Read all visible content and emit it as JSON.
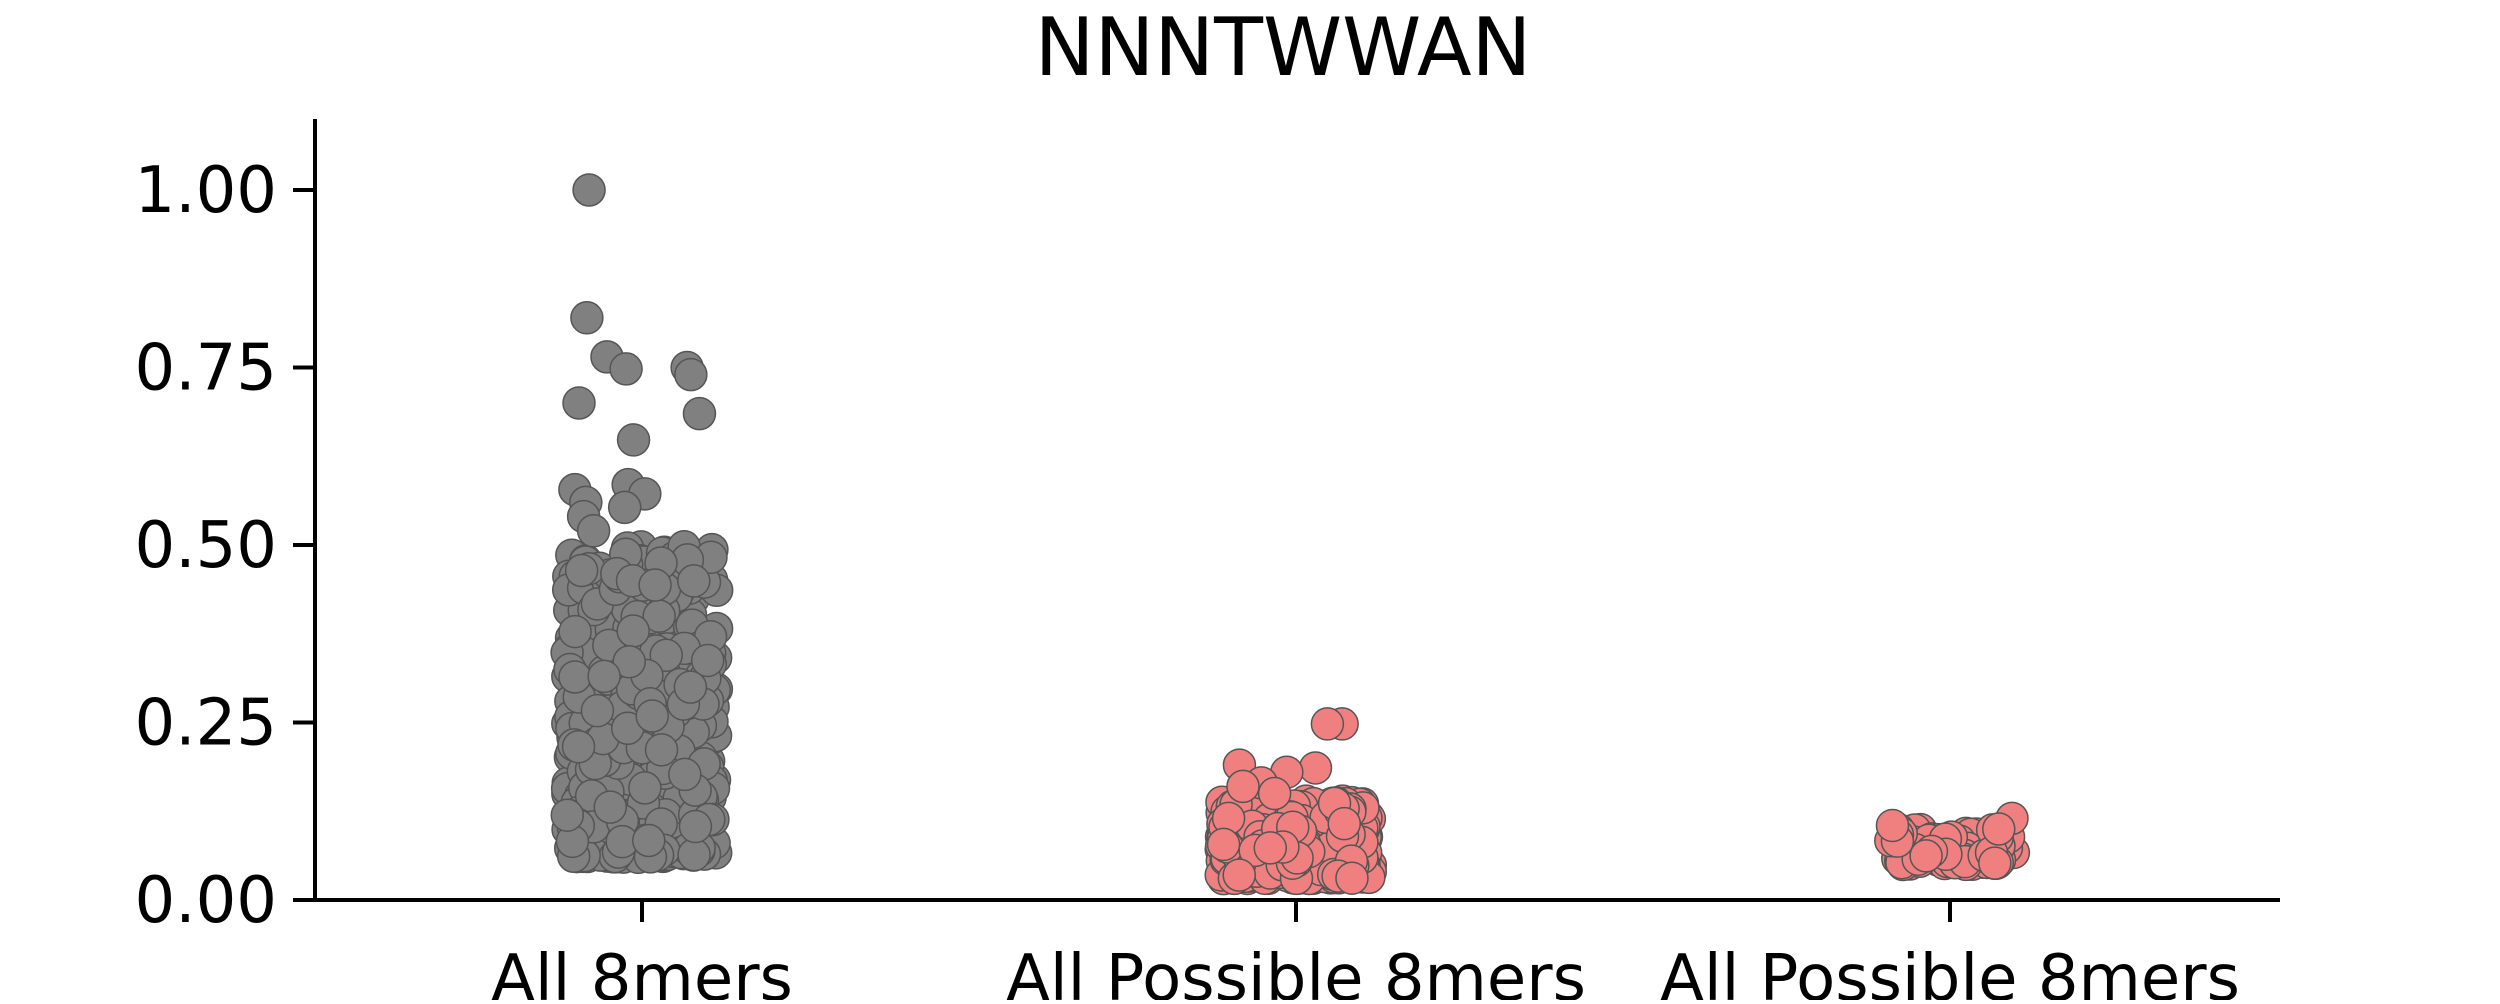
{
  "chart_data": {
    "type": "scatter",
    "subtype": "strip",
    "title": "NNNTWWAN",
    "xlabel": "",
    "ylabel": "",
    "categories": [
      "All 8mers",
      "All Possible 8mers",
      "All Possible 8mers"
    ],
    "ylim": [
      0,
      1.1
    ],
    "yticks": [
      0.0,
      0.25,
      0.5,
      0.75,
      1.0
    ],
    "ytick_labels": [
      "0.00",
      "0.25",
      "0.50",
      "0.75",
      "1.00"
    ],
    "grid": false,
    "legend": "none",
    "colors": [
      "#808080",
      "#f08080",
      "#f08080"
    ],
    "marker_edge_color": "#555555",
    "series": [
      {
        "category": "All 8mers",
        "color": "#808080",
        "highlighted_values": [
          1.0,
          0.82,
          0.765,
          0.75,
          0.748,
          0.74,
          0.7,
          0.685,
          0.648,
          0.585,
          0.578,
          0.572,
          0.56,
          0.553,
          0.54,
          0.52
        ],
        "body_range": [
          0.06,
          0.5
        ],
        "n_body_points": 520
      },
      {
        "category": "All Possible 8mers",
        "color": "#f08080",
        "highlighted_values": [
          0.248,
          0.248,
          0.19,
          0.186,
          0.18,
          0.165,
          0.16,
          0.15
        ],
        "body_range": [
          0.03,
          0.14
        ],
        "n_body_points": 420
      },
      {
        "category": "All Possible 8mers",
        "color": "#f08080",
        "highlighted_values": [
          0.115,
          0.105,
          0.1
        ],
        "body_range": [
          0.05,
          0.1
        ],
        "n_body_points": 70
      }
    ]
  }
}
